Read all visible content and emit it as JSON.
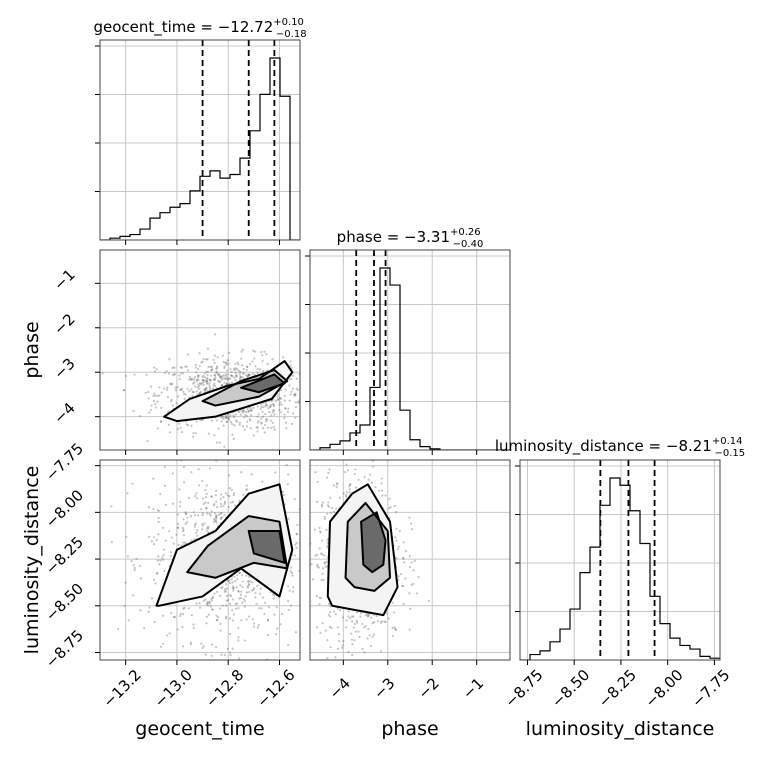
{
  "chart_data": {
    "type": "corner",
    "parameters": [
      {
        "name": "geocent_time",
        "title_prefix": "geocent_time = ",
        "median": "−12.72",
        "plus": "+0.10",
        "minus": "−0.18",
        "lo": -13.3,
        "hi": -12.52,
        "ticks": [
          -13.2,
          -13.0,
          -12.8,
          -12.6
        ],
        "tick_labels": [
          "−13.2",
          "−13.0",
          "−12.8",
          "−12.6"
        ],
        "quantiles": [
          -12.9,
          -12.72,
          -12.62
        ]
      },
      {
        "name": "phase",
        "title_prefix": "phase = ",
        "median": "−3.31",
        "plus": "+0.26",
        "minus": "−0.40",
        "lo": -4.75,
        "hi": -0.25,
        "ticks": [
          -4,
          -3,
          -2,
          -1
        ],
        "tick_labels": [
          "−4",
          "−3",
          "−2",
          "−1"
        ],
        "quantiles": [
          -3.71,
          -3.31,
          -3.05
        ]
      },
      {
        "name": "luminosity_distance",
        "title_prefix": "luminosity_distance = ",
        "median": "−8.21",
        "plus": "+0.14",
        "minus": "−0.15",
        "lo": -8.79,
        "hi": -7.72,
        "ticks": [
          -8.75,
          -8.5,
          -8.25,
          -8.0,
          -7.75
        ],
        "tick_labels": [
          "−8.75",
          "−8.50",
          "−8.25",
          "−8.00",
          "−7.75"
        ],
        "quantiles": [
          -8.36,
          -8.21,
          -8.07
        ]
      }
    ],
    "histograms": [
      {
        "param": "geocent_time",
        "edges_lo": -13.3,
        "bin_width": 0.039,
        "counts": [
          0,
          1,
          2,
          3,
          6,
          12,
          15,
          18,
          20,
          27,
          35,
          38,
          34,
          36,
          45,
          60,
          80,
          100,
          79,
          0
        ]
      },
      {
        "param": "phase",
        "edges_lo": -4.75,
        "bin_width": 0.225,
        "counts": [
          0,
          2,
          5,
          8,
          15,
          22,
          55,
          160,
          145,
          35,
          9,
          3,
          1,
          0,
          0,
          0,
          0,
          0,
          0,
          0
        ]
      },
      {
        "param": "luminosity_distance",
        "edges_lo": -8.79,
        "bin_width": 0.0535,
        "counts": [
          0,
          3,
          5,
          10,
          17,
          28,
          48,
          62,
          85,
          100,
          96,
          82,
          64,
          35,
          20,
          12,
          8,
          6,
          2,
          1
        ]
      }
    ],
    "contours_2d": [
      {
        "x": "geocent_time",
        "y": "phase",
        "levels": [
          [
            [
              -13.05,
              -4.0
            ],
            [
              -12.95,
              -3.6
            ],
            [
              -12.8,
              -3.3
            ],
            [
              -12.68,
              -3.15
            ],
            [
              -12.58,
              -2.75
            ],
            [
              -12.55,
              -3.0
            ],
            [
              -12.63,
              -3.6
            ],
            [
              -12.85,
              -4.0
            ],
            [
              -13.0,
              -4.1
            ]
          ],
          [
            [
              -12.9,
              -3.65
            ],
            [
              -12.75,
              -3.2
            ],
            [
              -12.62,
              -2.95
            ],
            [
              -12.57,
              -3.2
            ],
            [
              -12.68,
              -3.55
            ],
            [
              -12.85,
              -3.75
            ]
          ],
          [
            [
              -12.75,
              -3.35
            ],
            [
              -12.62,
              -3.05
            ],
            [
              -12.58,
              -3.25
            ],
            [
              -12.68,
              -3.45
            ]
          ]
        ]
      },
      {
        "x": "geocent_time",
        "y": "luminosity_distance",
        "levels": [
          [
            [
              -13.08,
              -8.5
            ],
            [
              -13.0,
              -8.2
            ],
            [
              -12.85,
              -8.1
            ],
            [
              -12.72,
              -7.9
            ],
            [
              -12.6,
              -7.85
            ],
            [
              -12.55,
              -8.2
            ],
            [
              -12.6,
              -8.45
            ],
            [
              -12.75,
              -8.3
            ],
            [
              -12.9,
              -8.45
            ],
            [
              -13.07,
              -8.5
            ]
          ],
          [
            [
              -12.96,
              -8.32
            ],
            [
              -12.88,
              -8.18
            ],
            [
              -12.72,
              -8.02
            ],
            [
              -12.6,
              -8.05
            ],
            [
              -12.57,
              -8.3
            ],
            [
              -12.7,
              -8.27
            ],
            [
              -12.85,
              -8.35
            ]
          ],
          [
            [
              -12.72,
              -8.1
            ],
            [
              -12.6,
              -8.1
            ],
            [
              -12.58,
              -8.27
            ],
            [
              -12.7,
              -8.22
            ]
          ]
        ]
      },
      {
        "x": "phase",
        "y": "luminosity_distance",
        "levels": [
          [
            [
              -4.35,
              -8.45
            ],
            [
              -4.3,
              -8.05
            ],
            [
              -3.8,
              -7.9
            ],
            [
              -3.45,
              -7.85
            ],
            [
              -2.95,
              -8.05
            ],
            [
              -2.78,
              -8.4
            ],
            [
              -3.1,
              -8.55
            ],
            [
              -3.8,
              -8.52
            ],
            [
              -4.25,
              -8.5
            ]
          ],
          [
            [
              -3.95,
              -8.35
            ],
            [
              -3.9,
              -8.05
            ],
            [
              -3.5,
              -7.95
            ],
            [
              -3.0,
              -8.1
            ],
            [
              -2.95,
              -8.35
            ],
            [
              -3.3,
              -8.42
            ],
            [
              -3.75,
              -8.4
            ]
          ],
          [
            [
              -3.55,
              -8.28
            ],
            [
              -3.6,
              -8.05
            ],
            [
              -3.25,
              -8.0
            ],
            [
              -3.05,
              -8.15
            ],
            [
              -3.1,
              -8.28
            ],
            [
              -3.35,
              -8.32
            ]
          ]
        ]
      }
    ],
    "grid": true,
    "quantile_lines": "dashed"
  }
}
